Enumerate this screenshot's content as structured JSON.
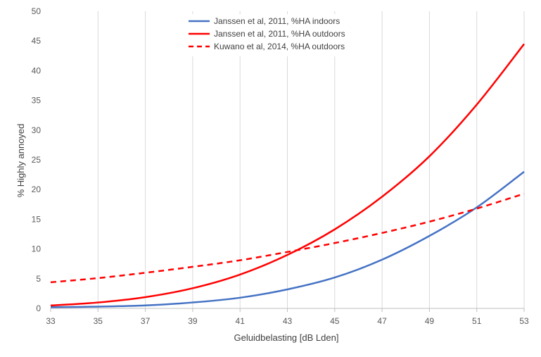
{
  "chart_data": {
    "type": "line",
    "title": "",
    "xlabel": "Geluidbelasting [dB Lden]",
    "ylabel": "% Highly annoyed",
    "xlim": [
      33,
      53
    ],
    "ylim": [
      0,
      50
    ],
    "x_ticks": [
      33,
      35,
      37,
      39,
      41,
      43,
      45,
      47,
      49,
      51,
      53
    ],
    "y_ticks": [
      0,
      5,
      10,
      15,
      20,
      25,
      30,
      35,
      40,
      45,
      50
    ],
    "grid": "vertical",
    "legend_position": "top-center",
    "x": [
      33,
      35,
      37,
      39,
      41,
      43,
      45,
      47,
      49,
      51,
      53
    ],
    "series": [
      {
        "name": "Janssen et al, 2011, %HA indoors",
        "color": "#4472C4",
        "dashed": false,
        "values": [
          0.2,
          0.3,
          0.5,
          1.0,
          1.8,
          3.2,
          5.2,
          8.2,
          12.2,
          17.0,
          23.0
        ]
      },
      {
        "name": "Janssen et al, 2011, %HA outdoors",
        "color": "#FF0000",
        "dashed": false,
        "values": [
          0.5,
          1.0,
          1.9,
          3.4,
          5.7,
          9.0,
          13.3,
          18.8,
          25.6,
          34.3,
          44.5
        ]
      },
      {
        "name": "Kuwano et al, 2014, %HA outdoors",
        "color": "#FF0000",
        "dashed": true,
        "values": [
          4.4,
          5.1,
          6.0,
          7.0,
          8.1,
          9.5,
          11.0,
          12.7,
          14.6,
          16.8,
          19.3
        ]
      }
    ]
  }
}
